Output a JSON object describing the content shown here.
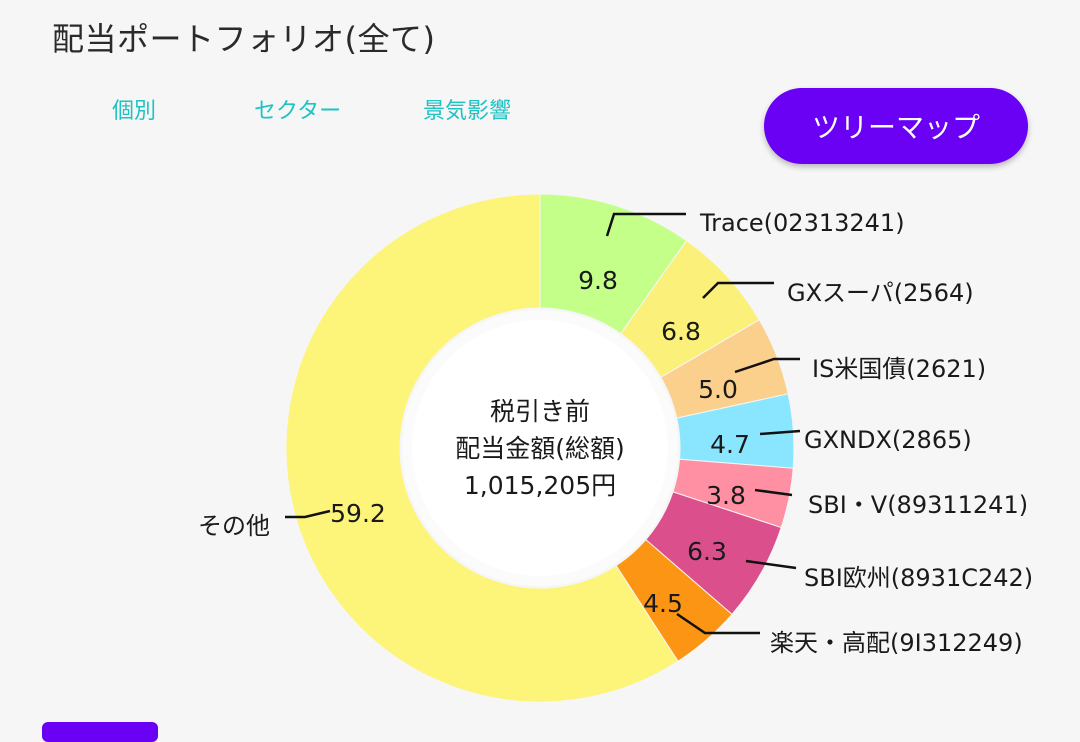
{
  "header": {
    "title": "配当ポートフォリオ(全て)"
  },
  "tabs": [
    {
      "label": "個別"
    },
    {
      "label": "セクター"
    },
    {
      "label": "景気影響"
    }
  ],
  "treemap_button": {
    "label": "ツリーマップ"
  },
  "center": {
    "line1": "税引き前",
    "line2": "配当金額(総額)",
    "line3": "1,015,205円"
  },
  "colors": {
    "accent": "#6a00f4",
    "tab": "#1fc3c3",
    "background": "#f6f6f6"
  },
  "chart_data": {
    "type": "pie",
    "donut": true,
    "series": [
      {
        "name": "Trace(02313241)",
        "value": 9.8,
        "label": "9.8",
        "color": "#c4ff8a"
      },
      {
        "name": "GXスーパ(2564)",
        "value": 6.8,
        "label": "6.8",
        "color": "#fbf17a"
      },
      {
        "name": "IS米国債(2621)",
        "value": 5.0,
        "label": "5.0",
        "color": "#fbcf8c"
      },
      {
        "name": "GXNDX(2865)",
        "value": 4.7,
        "label": "4.7",
        "color": "#8ae6ff"
      },
      {
        "name": "SBI・V(89311241)",
        "value": 3.8,
        "label": "3.8",
        "color": "#ff8fa2"
      },
      {
        "name": "SBI欧州(8931C242)",
        "value": 6.3,
        "label": "6.3",
        "color": "#db4f8c"
      },
      {
        "name": "楽天・高配(9I312249)",
        "value": 4.5,
        "label": "4.5",
        "color": "#fd9514"
      },
      {
        "name": "その他",
        "value": 59.2,
        "label": "59.2",
        "color": "#fdf47a"
      }
    ]
  }
}
